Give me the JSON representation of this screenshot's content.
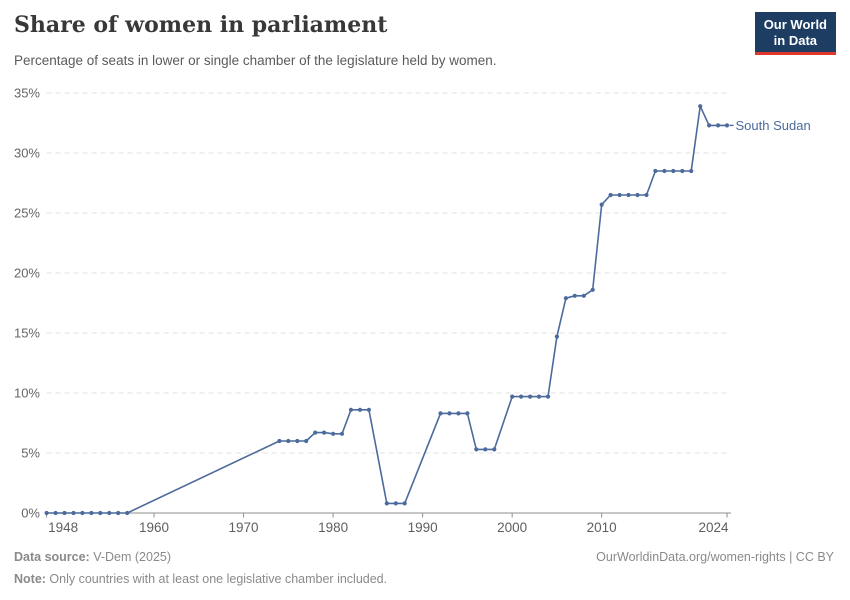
{
  "header": {
    "title": "Share of women in parliament",
    "subtitle": "Percentage of seats in lower or single chamber of the legislature held by women.",
    "logo": {
      "line1": "Our World",
      "line2": "in Data"
    }
  },
  "footer": {
    "datasource_label": "Data source:",
    "datasource_value": " V-Dem (2025)",
    "note_label": "Note:",
    "note_value": " Only countries with at least one legislative chamber included.",
    "rights": "OurWorldinData.org/women-rights | CC BY"
  },
  "colors": {
    "line": "#4c6a9c",
    "entity_label": "#4c6a9c",
    "grid": "#e2e2e2",
    "axis": "#8f8f8f",
    "tick_text": "#666666",
    "logo_navy": "#1d3d63",
    "logo_red": "#e0362c"
  },
  "chart_data": {
    "type": "line",
    "title": "Share of women in parliament",
    "subtitle": "Percentage of seats in lower or single chamber of the legislature held by women.",
    "xlabel": "",
    "ylabel": "",
    "xlim": [
      1948,
      2024
    ],
    "ylim": [
      0,
      35
    ],
    "grid": "dashed-horizontal",
    "legend_position": "end-of-line-label",
    "x_ticks": [
      [
        1948,
        "1948"
      ],
      [
        1960,
        "1960"
      ],
      [
        1970,
        "1970"
      ],
      [
        1980,
        "1980"
      ],
      [
        1990,
        "1990"
      ],
      [
        2000,
        "2000"
      ],
      [
        2010,
        "2010"
      ],
      [
        2024,
        "2024"
      ]
    ],
    "y_ticks": [
      [
        0,
        "0%"
      ],
      [
        5,
        "5%"
      ],
      [
        10,
        "10%"
      ],
      [
        15,
        "15%"
      ],
      [
        20,
        "20%"
      ],
      [
        25,
        "25%"
      ],
      [
        30,
        "30%"
      ],
      [
        35,
        "35%"
      ]
    ],
    "series": [
      {
        "name": "South Sudan",
        "color": "#4c6a9c",
        "markers": true,
        "note": "gaps between listed years are linearly interpolated without markers",
        "points": [
          [
            1948,
            0
          ],
          [
            1949,
            0
          ],
          [
            1950,
            0
          ],
          [
            1951,
            0
          ],
          [
            1952,
            0
          ],
          [
            1953,
            0
          ],
          [
            1954,
            0
          ],
          [
            1955,
            0
          ],
          [
            1956,
            0
          ],
          [
            1957,
            0
          ],
          [
            1974,
            6.0
          ],
          [
            1975,
            6.0
          ],
          [
            1976,
            6.0
          ],
          [
            1977,
            6.0
          ],
          [
            1978,
            6.7
          ],
          [
            1979,
            6.7
          ],
          [
            1980,
            6.6
          ],
          [
            1981,
            6.6
          ],
          [
            1982,
            8.6
          ],
          [
            1983,
            8.6
          ],
          [
            1984,
            8.6
          ],
          [
            1986,
            0.8
          ],
          [
            1987,
            0.8
          ],
          [
            1988,
            0.8
          ],
          [
            1992,
            8.3
          ],
          [
            1993,
            8.3
          ],
          [
            1994,
            8.3
          ],
          [
            1995,
            8.3
          ],
          [
            1996,
            5.3
          ],
          [
            1997,
            5.3
          ],
          [
            1998,
            5.3
          ],
          [
            2000,
            9.7
          ],
          [
            2001,
            9.7
          ],
          [
            2002,
            9.7
          ],
          [
            2003,
            9.7
          ],
          [
            2004,
            9.7
          ],
          [
            2005,
            14.7
          ],
          [
            2006,
            17.9
          ],
          [
            2007,
            18.1
          ],
          [
            2008,
            18.1
          ],
          [
            2009,
            18.6
          ],
          [
            2010,
            25.7
          ],
          [
            2011,
            26.5
          ],
          [
            2012,
            26.5
          ],
          [
            2013,
            26.5
          ],
          [
            2014,
            26.5
          ],
          [
            2015,
            26.5
          ],
          [
            2016,
            28.5
          ],
          [
            2017,
            28.5
          ],
          [
            2018,
            28.5
          ],
          [
            2019,
            28.5
          ],
          [
            2020,
            28.5
          ],
          [
            2021,
            33.9
          ],
          [
            2022,
            32.3
          ],
          [
            2023,
            32.3
          ],
          [
            2024,
            32.3
          ]
        ]
      }
    ]
  }
}
